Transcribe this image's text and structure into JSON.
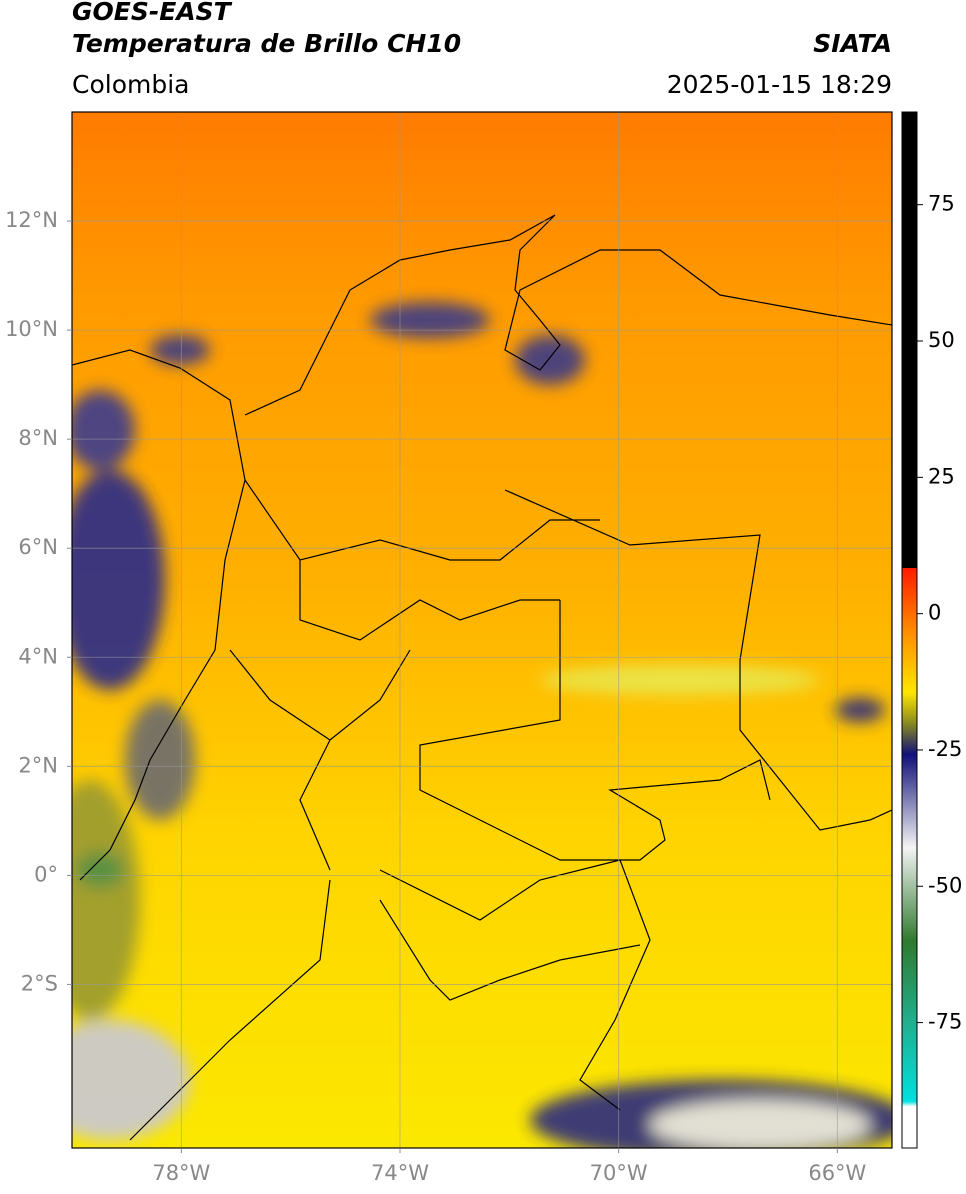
{
  "header": {
    "title": "GOES-EAST",
    "subtitle": "Temperatura de Brillo CH10",
    "source": "SIATA",
    "region": "Colombia",
    "datetime": "2025-01-15 18:29"
  },
  "map": {
    "xlim": [
      -80,
      -65
    ],
    "ylim": [
      -5,
      14
    ],
    "xticks": [
      {
        "value": -78,
        "label": "78°W"
      },
      {
        "value": -74,
        "label": "74°W"
      },
      {
        "value": -70,
        "label": "70°W"
      },
      {
        "value": -66,
        "label": "66°W"
      }
    ],
    "yticks": [
      {
        "value": 12,
        "label": "12°N"
      },
      {
        "value": 10,
        "label": "10°N"
      },
      {
        "value": 8,
        "label": "8°N"
      },
      {
        "value": 6,
        "label": "6°N"
      },
      {
        "value": 4,
        "label": "4°N"
      },
      {
        "value": 2,
        "label": "2°N"
      },
      {
        "value": 0,
        "label": "0°"
      },
      {
        "value": -2,
        "label": "2°S"
      }
    ],
    "grid": true
  },
  "colorbar": {
    "lim": [
      -98,
      92
    ],
    "ticks": [
      75,
      50,
      25,
      0,
      -25,
      -50,
      -75
    ]
  }
}
